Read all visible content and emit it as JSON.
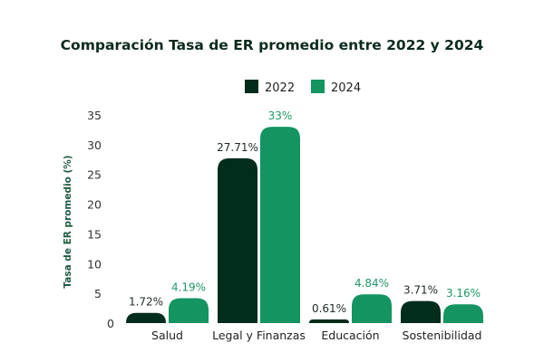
{
  "chart_data": {
    "type": "bar",
    "title": "Comparación Tasa de ER promedio entre 2022 y 2024",
    "xlabel": "",
    "ylabel": "Tasa de ER promedio (%)",
    "categories": [
      "Salud",
      "Legal y Finanzas",
      "Educación",
      "Sostenibilidad"
    ],
    "series": [
      {
        "name": "2022",
        "color": "#022c1b",
        "label_color": "#1e2b24",
        "values": [
          1.72,
          27.71,
          0.61,
          3.71
        ],
        "labels": [
          "1.72%",
          "27.71%",
          "0.61%",
          "3.71%"
        ]
      },
      {
        "name": "2024",
        "color": "#139461",
        "label_color": "#1f9a66",
        "values": [
          4.19,
          33,
          4.84,
          3.16
        ],
        "labels": [
          "4.19%",
          "33%",
          "4.84%",
          "3.16%"
        ]
      }
    ],
    "ylim": [
      0,
      35
    ],
    "yticks": [
      0,
      5,
      10,
      15,
      20,
      25,
      30,
      35
    ],
    "grid": false,
    "legend_position": "top-center"
  }
}
